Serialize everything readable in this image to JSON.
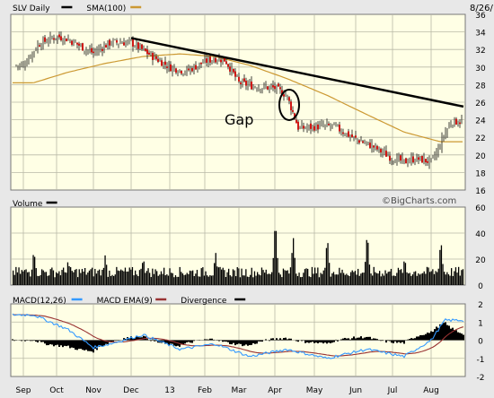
{
  "header": {
    "date": "8/26/",
    "watermark": "©BigCharts.com"
  },
  "colors": {
    "panel_bg": "#ffffe5",
    "page_bg": "#e8e8e8",
    "grid": "#b9b9a8",
    "candle": "#111111",
    "down_candle": "#cc0000",
    "sma": "#cc9933",
    "trendline": "#000000",
    "volume": "#000000",
    "macd": "#3399ff",
    "macd_ema": "#993333",
    "divergence": "#000000"
  },
  "x_labels": [
    "Sep",
    "Oct",
    "Nov",
    "Dec",
    "13",
    "Feb",
    "Mar",
    "Apr",
    "May",
    "Jun",
    "Jul",
    "Aug"
  ],
  "chart_data": [
    {
      "type": "candlestick",
      "legend": [
        {
          "label": "SLV Daily",
          "color": "#000000"
        },
        {
          "label": "SMA(100)",
          "color": "#cc9933"
        }
      ],
      "ylim": [
        16,
        36
      ],
      "yticks": [
        16,
        18,
        20,
        22,
        24,
        26,
        28,
        30,
        32,
        34,
        36
      ],
      "annotation": "Gap",
      "months": [
        "Sep",
        "Oct",
        "Nov",
        "Dec",
        "13",
        "Feb",
        "Mar",
        "Apr",
        "May",
        "Jun",
        "Jul",
        "Aug"
      ],
      "price_anchors": [
        [
          "Sep",
          30.2
        ],
        [
          "Sep",
          32.6
        ],
        [
          "Oct",
          33.5
        ],
        [
          "Oct",
          33.2
        ],
        [
          "Oct",
          32.5
        ],
        [
          "Nov",
          31.6
        ],
        [
          "Nov",
          32.8
        ],
        [
          "Dec",
          32.8
        ],
        [
          "Dec",
          31.5
        ],
        [
          "13",
          30.0
        ],
        [
          "13",
          29.5
        ],
        [
          "Feb",
          30.6
        ],
        [
          "Feb",
          31.0
        ],
        [
          "Feb",
          30.8
        ],
        [
          "Mar",
          28.2
        ],
        [
          "Mar",
          27.8
        ],
        [
          "Apr",
          27.6
        ],
        [
          "Apr",
          26.8
        ],
        [
          "Apr",
          23.0
        ],
        [
          "May",
          23.2
        ],
        [
          "May",
          23.3
        ],
        [
          "Jun",
          21.8
        ],
        [
          "Jun",
          21.0
        ],
        [
          "Jul",
          19.6
        ],
        [
          "Jul",
          19.2
        ],
        [
          "Jul",
          19.6
        ],
        [
          "Aug",
          19.2
        ],
        [
          "Aug",
          20.5
        ],
        [
          "Aug",
          22.5
        ],
        [
          "Aug",
          23.8
        ]
      ],
      "sma_anchors": [
        [
          "Sep",
          28.2
        ],
        [
          "Oct",
          29.4
        ],
        [
          "Nov",
          30.4
        ],
        [
          "Dec",
          31.2
        ],
        [
          "13",
          31.5
        ],
        [
          "Feb",
          31.2
        ],
        [
          "Mar",
          30.2
        ],
        [
          "Apr",
          28.7
        ],
        [
          "May",
          26.8
        ],
        [
          "Jun",
          24.6
        ],
        [
          "Jul",
          22.6
        ],
        [
          "Aug",
          21.5
        ]
      ],
      "trendline": [
        [
          "Dec",
          33.3
        ],
        [
          "Aug",
          25.5
        ]
      ],
      "gap_circle": {
        "month": "Apr",
        "value": 25.7
      }
    },
    {
      "type": "bar",
      "legend": [
        {
          "label": "Volume",
          "color": "#000000"
        }
      ],
      "ylim": [
        0,
        60
      ],
      "yticks": [
        0,
        20,
        40,
        60
      ],
      "spikes": [
        [
          "Sep",
          28
        ],
        [
          "Oct",
          20
        ],
        [
          "Nov",
          24
        ],
        [
          "Dec",
          22
        ],
        [
          "Feb",
          26
        ],
        [
          "Apr",
          52
        ],
        [
          "Apr",
          38
        ],
        [
          "May",
          38
        ],
        [
          "Jun",
          42
        ],
        [
          "Jul",
          22
        ],
        [
          "Aug",
          36
        ]
      ],
      "baseline": 6
    },
    {
      "type": "line",
      "legend": [
        {
          "label": "MACD(12,26)",
          "color": "#3399ff"
        },
        {
          "label": "MACD EMA(9)",
          "color": "#993333"
        },
        {
          "label": "Divergence",
          "color": "#000000"
        }
      ],
      "ylim": [
        -2,
        2
      ],
      "yticks": [
        -2,
        -1,
        0,
        1,
        2
      ],
      "macd_anchors": [
        [
          "Sep",
          1.4
        ],
        [
          "Oct",
          0.6
        ],
        [
          "Nov",
          -0.4
        ],
        [
          "Nov",
          -0.2
        ],
        [
          "Dec",
          0.3
        ],
        [
          "13",
          -0.5
        ],
        [
          "Feb",
          -0.2
        ],
        [
          "Mar",
          -0.9
        ],
        [
          "Apr",
          -0.5
        ],
        [
          "May",
          -1.0
        ],
        [
          "Jun",
          -0.5
        ],
        [
          "Jul",
          -0.9
        ],
        [
          "Aug",
          0.0
        ],
        [
          "Aug",
          1.1
        ]
      ]
    }
  ]
}
